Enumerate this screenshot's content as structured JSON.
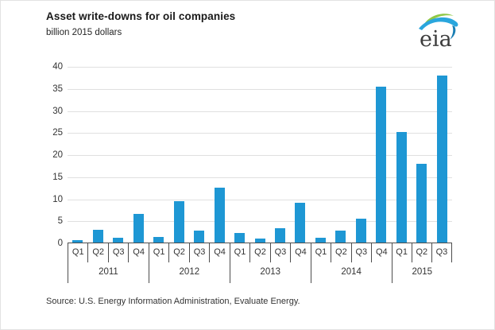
{
  "header": {
    "title": "Asset write-downs for oil companies",
    "subtitle": "billion 2015 dollars"
  },
  "logo": {
    "text": "eia"
  },
  "source": {
    "text": "Source:  U.S. Energy Information Administration, Evaluate Energy."
  },
  "chart_data": {
    "type": "bar",
    "title": "Asset write-downs for oil companies",
    "units_label": "billion 2015 dollars",
    "ylim": [
      0,
      40
    ],
    "ytick_step": 5,
    "grid": true,
    "legend": "none",
    "bar_color": "#1e97d4",
    "axis_line_color": "#4d4d4d",
    "gridline_color": "#e0e0e0",
    "categories": [
      "2011 Q1",
      "2011 Q2",
      "2011 Q3",
      "2011 Q4",
      "2012 Q1",
      "2012 Q2",
      "2012 Q3",
      "2012 Q4",
      "2013 Q1",
      "2013 Q2",
      "2013 Q3",
      "2013 Q4",
      "2014 Q1",
      "2014 Q2",
      "2014 Q3",
      "2014 Q4",
      "2015 Q1",
      "2015 Q2",
      "2015 Q3"
    ],
    "values": [
      0.8,
      3.1,
      1.2,
      6.7,
      1.4,
      9.5,
      2.8,
      12.6,
      2.4,
      1.1,
      3.4,
      9.2,
      1.2,
      2.9,
      5.5,
      35.5,
      25.2,
      18.0,
      38.1
    ],
    "groups": [
      {
        "year": "2011",
        "quarters": [
          "Q1",
          "Q2",
          "Q3",
          "Q4"
        ],
        "values": [
          0.8,
          3.1,
          1.2,
          6.7
        ]
      },
      {
        "year": "2012",
        "quarters": [
          "Q1",
          "Q2",
          "Q3",
          "Q4"
        ],
        "values": [
          1.4,
          9.5,
          2.8,
          12.6
        ]
      },
      {
        "year": "2013",
        "quarters": [
          "Q1",
          "Q2",
          "Q3",
          "Q4"
        ],
        "values": [
          2.4,
          1.1,
          3.4,
          9.2
        ]
      },
      {
        "year": "2014",
        "quarters": [
          "Q1",
          "Q2",
          "Q3",
          "Q4"
        ],
        "values": [
          1.2,
          2.9,
          5.5,
          35.5
        ]
      },
      {
        "year": "2015",
        "quarters": [
          "Q1",
          "Q2",
          "Q3"
        ],
        "values": [
          25.2,
          18.0,
          38.1
        ]
      }
    ],
    "source": "Source: U.S. Energy Information Administration, Evaluate Energy."
  }
}
